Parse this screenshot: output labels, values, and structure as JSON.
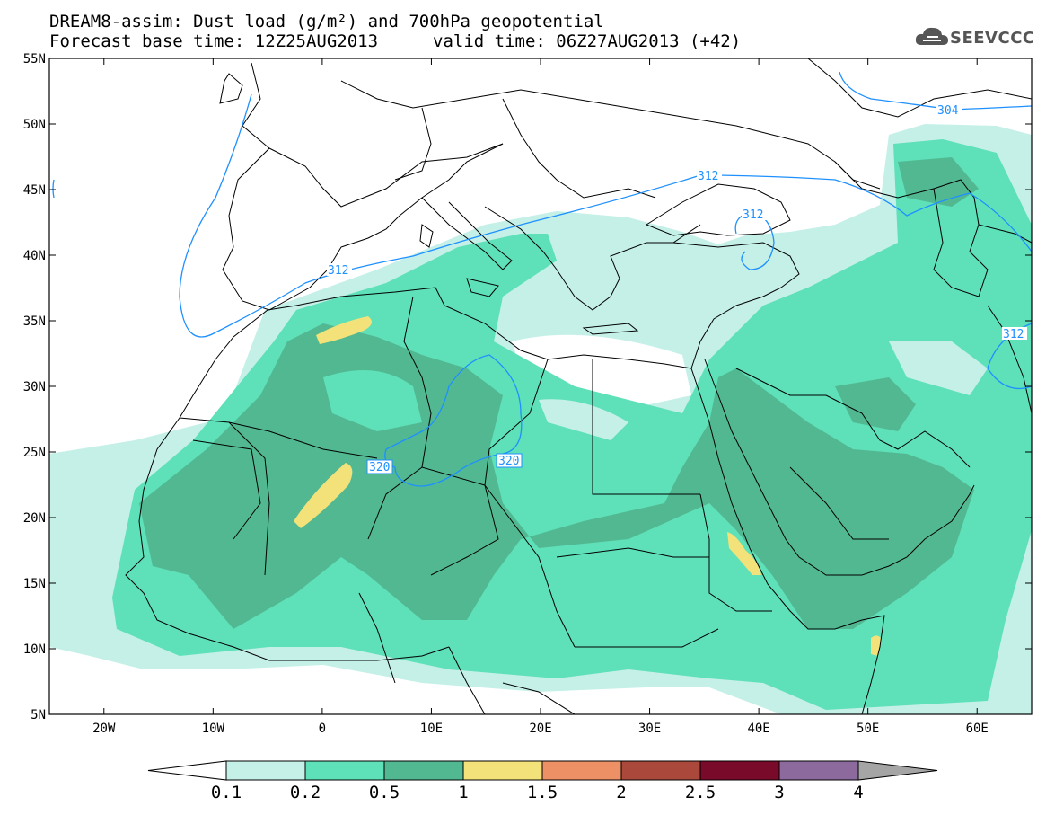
{
  "header": {
    "title": "DREAM8-assim: Dust load (g/m²) and 700hPa geopotential",
    "base_time": "Forecast base time: 12Z25AUG2013",
    "valid_time": "valid time: 06Z27AUG2013 (+42)"
  },
  "logo": {
    "text": "SEEVCCC",
    "icon": "cloud-icon"
  },
  "map": {
    "lon_range": [
      -25,
      65
    ],
    "lat_range": [
      5,
      55
    ],
    "lat_labels": [
      "55N",
      "50N",
      "45N",
      "40N",
      "35N",
      "30N",
      "25N",
      "20N",
      "15N",
      "10N",
      "5N"
    ],
    "lon_labels": [
      "20W",
      "10W",
      "0",
      "10E",
      "20E",
      "30E",
      "40E",
      "50E",
      "60E"
    ],
    "contour_labels": [
      "304",
      "312",
      "312",
      "312",
      "312",
      "320",
      "320"
    ],
    "contour_color": "#1e90ff",
    "coastline_color": "#000000"
  },
  "colorbar": {
    "labels": [
      "0.1",
      "0.2",
      "0.5",
      "1",
      "1.5",
      "2",
      "2.5",
      "3",
      "4"
    ],
    "colors": [
      "#c4f0e8",
      "#5ee0b8",
      "#52b892",
      "#f3e17a",
      "#ee9066",
      "#a9483b",
      "#7a0a2a",
      "#8c6a9e",
      "#a5a5a5"
    ]
  }
}
